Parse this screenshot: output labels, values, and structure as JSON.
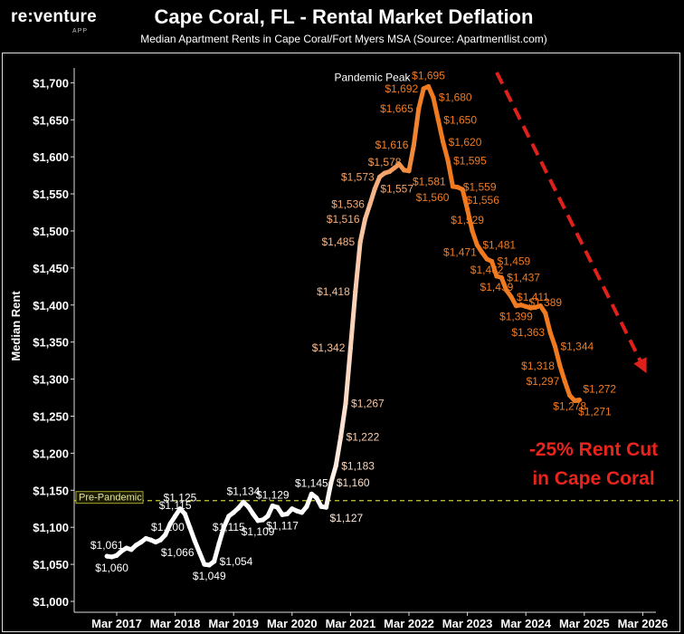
{
  "brand": {
    "logo": "re:venture",
    "sub": "APP"
  },
  "chart_data": {
    "type": "line",
    "title": "Cape Coral, FL - Rental Market Deflation",
    "subtitle": "Median Apartment Rents in Cape Coral/Fort Myers MSA (Source: Apartmentlist.com)",
    "xlabel": "",
    "ylabel": "Median Rent",
    "ylim": [
      1000,
      1720
    ],
    "yticks": [
      "$1,000",
      "$1,050",
      "$1,100",
      "$1,150",
      "$1,200",
      "$1,250",
      "$1,300",
      "$1,350",
      "$1,400",
      "$1,450",
      "$1,500",
      "$1,550",
      "$1,600",
      "$1,650",
      "$1,700"
    ],
    "ytick_values": [
      1000,
      1050,
      1100,
      1150,
      1200,
      1250,
      1300,
      1350,
      1400,
      1450,
      1500,
      1550,
      1600,
      1650,
      1700
    ],
    "xticks": [
      "Mar 2017",
      "Mar 2018",
      "Mar 2019",
      "Mar 2020",
      "Mar 2021",
      "Mar 2022",
      "Mar 2023",
      "Mar 2024",
      "Mar 2025",
      "Mar 2026"
    ],
    "x_start": "2017-01",
    "points": [
      {
        "m": "2017-01",
        "v": 1061
      },
      {
        "m": "2017-02",
        "v": 1060
      },
      {
        "m": "2017-03",
        "v": 1062
      },
      {
        "m": "2017-04",
        "v": 1068
      },
      {
        "m": "2017-05",
        "v": 1072
      },
      {
        "m": "2017-06",
        "v": 1070
      },
      {
        "m": "2017-07",
        "v": 1076
      },
      {
        "m": "2017-08",
        "v": 1080
      },
      {
        "m": "2017-09",
        "v": 1085
      },
      {
        "m": "2017-10",
        "v": 1083
      },
      {
        "m": "2017-11",
        "v": 1080
      },
      {
        "m": "2017-12",
        "v": 1083
      },
      {
        "m": "2018-01",
        "v": 1090
      },
      {
        "m": "2018-02",
        "v": 1105
      },
      {
        "m": "2018-03",
        "v": 1115
      },
      {
        "m": "2018-04",
        "v": 1125
      },
      {
        "m": "2018-05",
        "v": 1118
      },
      {
        "m": "2018-06",
        "v": 1100
      },
      {
        "m": "2018-07",
        "v": 1082
      },
      {
        "m": "2018-08",
        "v": 1066
      },
      {
        "m": "2018-09",
        "v": 1050
      },
      {
        "m": "2018-10",
        "v": 1049
      },
      {
        "m": "2018-11",
        "v": 1054
      },
      {
        "m": "2018-12",
        "v": 1078
      },
      {
        "m": "2019-01",
        "v": 1100
      },
      {
        "m": "2019-02",
        "v": 1115
      },
      {
        "m": "2019-03",
        "v": 1120
      },
      {
        "m": "2019-04",
        "v": 1126
      },
      {
        "m": "2019-05",
        "v": 1134
      },
      {
        "m": "2019-06",
        "v": 1128
      },
      {
        "m": "2019-07",
        "v": 1118
      },
      {
        "m": "2019-08",
        "v": 1109
      },
      {
        "m": "2019-09",
        "v": 1110
      },
      {
        "m": "2019-10",
        "v": 1115
      },
      {
        "m": "2019-11",
        "v": 1129
      },
      {
        "m": "2019-12",
        "v": 1127
      },
      {
        "m": "2020-01",
        "v": 1117
      },
      {
        "m": "2020-02",
        "v": 1118
      },
      {
        "m": "2020-03",
        "v": 1125
      },
      {
        "m": "2020-04",
        "v": 1122
      },
      {
        "m": "2020-05",
        "v": 1120
      },
      {
        "m": "2020-06",
        "v": 1128
      },
      {
        "m": "2020-07",
        "v": 1145
      },
      {
        "m": "2020-08",
        "v": 1140
      },
      {
        "m": "2020-09",
        "v": 1128
      },
      {
        "m": "2020-10",
        "v": 1127
      },
      {
        "m": "2020-11",
        "v": 1160
      },
      {
        "m": "2020-12",
        "v": 1183
      },
      {
        "m": "2021-01",
        "v": 1222
      },
      {
        "m": "2021-02",
        "v": 1267
      },
      {
        "m": "2021-03",
        "v": 1342
      },
      {
        "m": "2021-04",
        "v": 1418
      },
      {
        "m": "2021-05",
        "v": 1485
      },
      {
        "m": "2021-06",
        "v": 1516
      },
      {
        "m": "2021-07",
        "v": 1536
      },
      {
        "m": "2021-08",
        "v": 1557
      },
      {
        "m": "2021-09",
        "v": 1573
      },
      {
        "m": "2021-10",
        "v": 1578
      },
      {
        "m": "2021-11",
        "v": 1580
      },
      {
        "m": "2021-12",
        "v": 1585
      },
      {
        "m": "2022-01",
        "v": 1590
      },
      {
        "m": "2022-02",
        "v": 1582
      },
      {
        "m": "2022-03",
        "v": 1581
      },
      {
        "m": "2022-04",
        "v": 1616
      },
      {
        "m": "2022-05",
        "v": 1665
      },
      {
        "m": "2022-06",
        "v": 1692
      },
      {
        "m": "2022-07",
        "v": 1695
      },
      {
        "m": "2022-08",
        "v": 1680
      },
      {
        "m": "2022-09",
        "v": 1650
      },
      {
        "m": "2022-10",
        "v": 1620
      },
      {
        "m": "2022-11",
        "v": 1595
      },
      {
        "m": "2022-12",
        "v": 1560
      },
      {
        "m": "2023-01",
        "v": 1559
      },
      {
        "m": "2023-02",
        "v": 1556
      },
      {
        "m": "2023-03",
        "v": 1529
      },
      {
        "m": "2023-04",
        "v": 1500
      },
      {
        "m": "2023-05",
        "v": 1481
      },
      {
        "m": "2023-06",
        "v": 1471
      },
      {
        "m": "2023-07",
        "v": 1462
      },
      {
        "m": "2023-08",
        "v": 1459
      },
      {
        "m": "2023-09",
        "v": 1439
      },
      {
        "m": "2023-10",
        "v": 1437
      },
      {
        "m": "2023-11",
        "v": 1420
      },
      {
        "m": "2023-12",
        "v": 1411
      },
      {
        "m": "2024-01",
        "v": 1399
      },
      {
        "m": "2024-02",
        "v": 1400
      },
      {
        "m": "2024-03",
        "v": 1398
      },
      {
        "m": "2024-04",
        "v": 1396
      },
      {
        "m": "2024-05",
        "v": 1397
      },
      {
        "m": "2024-06",
        "v": 1399
      },
      {
        "m": "2024-07",
        "v": 1389
      },
      {
        "m": "2024-08",
        "v": 1363
      },
      {
        "m": "2024-09",
        "v": 1344
      },
      {
        "m": "2024-10",
        "v": 1318
      },
      {
        "m": "2024-11",
        "v": 1297
      },
      {
        "m": "2024-12",
        "v": 1278
      },
      {
        "m": "2025-01",
        "v": 1271
      },
      {
        "m": "2025-02",
        "v": 1272
      }
    ],
    "data_labels": [
      {
        "m": "2017-01",
        "v": 1061,
        "text": "$1,061",
        "pos": "above"
      },
      {
        "m": "2017-02",
        "v": 1060,
        "text": "$1,060",
        "pos": "below"
      },
      {
        "m": "2018-03",
        "v": 1115,
        "text": "$1,115",
        "pos": "above"
      },
      {
        "m": "2018-04",
        "v": 1125,
        "text": "$1,125",
        "pos": "above"
      },
      {
        "m": "2018-06",
        "v": 1100,
        "text": "$1,100",
        "pos": "left"
      },
      {
        "m": "2018-08",
        "v": 1066,
        "text": "$1,066",
        "pos": "left"
      },
      {
        "m": "2018-10",
        "v": 1049,
        "text": "$1,049",
        "pos": "below"
      },
      {
        "m": "2018-11",
        "v": 1054,
        "text": "$1,054",
        "pos": "right"
      },
      {
        "m": "2019-02",
        "v": 1115,
        "text": "$1,115",
        "pos": "below"
      },
      {
        "m": "2019-05",
        "v": 1134,
        "text": "$1,134",
        "pos": "above"
      },
      {
        "m": "2019-08",
        "v": 1109,
        "text": "$1,109",
        "pos": "below"
      },
      {
        "m": "2019-11",
        "v": 1129,
        "text": "$1,129",
        "pos": "above"
      },
      {
        "m": "2020-01",
        "v": 1117,
        "text": "$1,117",
        "pos": "below"
      },
      {
        "m": "2020-07",
        "v": 1145,
        "text": "$1,145",
        "pos": "above"
      },
      {
        "m": "2020-10",
        "v": 1127,
        "text": "$1,127",
        "pos": "belowright"
      },
      {
        "m": "2020-11",
        "v": 1160,
        "text": "$1,160",
        "pos": "right"
      },
      {
        "m": "2020-12",
        "v": 1183,
        "text": "$1,183",
        "pos": "right"
      },
      {
        "m": "2021-01",
        "v": 1222,
        "text": "$1,222",
        "pos": "right"
      },
      {
        "m": "2021-02",
        "v": 1267,
        "text": "$1,267",
        "pos": "right"
      },
      {
        "m": "2021-03",
        "v": 1342,
        "text": "$1,342",
        "pos": "left"
      },
      {
        "m": "2021-04",
        "v": 1418,
        "text": "$1,418",
        "pos": "left"
      },
      {
        "m": "2021-05",
        "v": 1485,
        "text": "$1,485",
        "pos": "left"
      },
      {
        "m": "2021-06",
        "v": 1516,
        "text": "$1,516",
        "pos": "left"
      },
      {
        "m": "2021-07",
        "v": 1536,
        "text": "$1,536",
        "pos": "left"
      },
      {
        "m": "2021-08",
        "v": 1557,
        "text": "$1,557",
        "pos": "right"
      },
      {
        "m": "2021-09",
        "v": 1573,
        "text": "$1,573",
        "pos": "left"
      },
      {
        "m": "2021-10",
        "v": 1578,
        "text": "$1,578",
        "pos": "above"
      },
      {
        "m": "2022-03",
        "v": 1581,
        "text": "$1,581",
        "pos": "belowright"
      },
      {
        "m": "2022-04",
        "v": 1616,
        "text": "$1,616",
        "pos": "left"
      },
      {
        "m": "2022-05",
        "v": 1665,
        "text": "$1,665",
        "pos": "left"
      },
      {
        "m": "2022-06",
        "v": 1692,
        "text": "$1,692",
        "pos": "left"
      },
      {
        "m": "2022-07",
        "v": 1695,
        "text": "$1,695",
        "pos": "above"
      },
      {
        "m": "2022-08",
        "v": 1680,
        "text": "$1,680",
        "pos": "right"
      },
      {
        "m": "2022-09",
        "v": 1650,
        "text": "$1,650",
        "pos": "right"
      },
      {
        "m": "2022-10",
        "v": 1620,
        "text": "$1,620",
        "pos": "right"
      },
      {
        "m": "2022-11",
        "v": 1595,
        "text": "$1,595",
        "pos": "right"
      },
      {
        "m": "2022-12",
        "v": 1560,
        "text": "$1,560",
        "pos": "belowleft"
      },
      {
        "m": "2023-01",
        "v": 1559,
        "text": "$1,559",
        "pos": "right"
      },
      {
        "m": "2023-02",
        "v": 1556,
        "text": "$1,556",
        "pos": "belowright"
      },
      {
        "m": "2023-03",
        "v": 1529,
        "text": "$1,529",
        "pos": "below"
      },
      {
        "m": "2023-05",
        "v": 1481,
        "text": "$1,481",
        "pos": "right"
      },
      {
        "m": "2023-06",
        "v": 1471,
        "text": "$1,471",
        "pos": "left"
      },
      {
        "m": "2023-07",
        "v": 1462,
        "text": "$1,462",
        "pos": "below"
      },
      {
        "m": "2023-08",
        "v": 1459,
        "text": "$1,459",
        "pos": "right"
      },
      {
        "m": "2023-09",
        "v": 1439,
        "text": "$1,439",
        "pos": "below"
      },
      {
        "m": "2023-10",
        "v": 1437,
        "text": "$1,437",
        "pos": "right"
      },
      {
        "m": "2023-12",
        "v": 1411,
        "text": "$1,411",
        "pos": "right"
      },
      {
        "m": "2024-01",
        "v": 1399,
        "text": "$1,399",
        "pos": "below"
      },
      {
        "m": "2024-07",
        "v": 1389,
        "text": "$1,389",
        "pos": "above"
      },
      {
        "m": "2024-08",
        "v": 1363,
        "text": "$1,363",
        "pos": "left"
      },
      {
        "m": "2024-09",
        "v": 1344,
        "text": "$1,344",
        "pos": "right"
      },
      {
        "m": "2024-10",
        "v": 1318,
        "text": "$1,318",
        "pos": "left"
      },
      {
        "m": "2024-11",
        "v": 1297,
        "text": "$1,297",
        "pos": "left"
      },
      {
        "m": "2024-12",
        "v": 1278,
        "text": "$1,278",
        "pos": "below"
      },
      {
        "m": "2025-01",
        "v": 1271,
        "text": "$1,271",
        "pos": "belowright"
      },
      {
        "m": "2025-02",
        "v": 1272,
        "text": "$1,272",
        "pos": "aboveright"
      }
    ],
    "reference_line": {
      "value": 1136,
      "label": "Pre-Pandemic",
      "color": "#c9c93a"
    },
    "annotation_peak": {
      "text": "Pandemic Peak",
      "m": "2022-07",
      "v": 1695
    },
    "annotation_cut": {
      "line1": "-25% Rent Cut",
      "line2": "in Cape Coral"
    },
    "colors": {
      "start": "#ffffff",
      "mid": "#f6b083",
      "end": "#f07a20",
      "text_start": "#ffffff",
      "text_end": "#f07a20",
      "cut": "#e8241d",
      "arrow": "#e0211b"
    }
  }
}
